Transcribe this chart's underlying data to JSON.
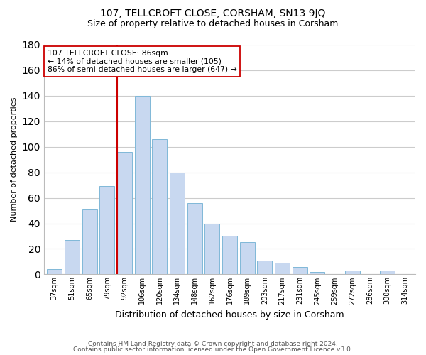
{
  "title": "107, TELLCROFT CLOSE, CORSHAM, SN13 9JQ",
  "subtitle": "Size of property relative to detached houses in Corsham",
  "xlabel": "Distribution of detached houses by size in Corsham",
  "ylabel": "Number of detached properties",
  "categories": [
    "37sqm",
    "51sqm",
    "65sqm",
    "79sqm",
    "92sqm",
    "106sqm",
    "120sqm",
    "134sqm",
    "148sqm",
    "162sqm",
    "176sqm",
    "189sqm",
    "203sqm",
    "217sqm",
    "231sqm",
    "245sqm",
    "259sqm",
    "272sqm",
    "286sqm",
    "300sqm",
    "314sqm"
  ],
  "values": [
    4,
    27,
    51,
    69,
    96,
    140,
    106,
    80,
    56,
    40,
    30,
    25,
    11,
    9,
    6,
    2,
    0,
    3,
    0,
    3,
    0
  ],
  "bar_color": "#c8d8f0",
  "bar_edge_color": "#7fb8d8",
  "vline_color": "#cc0000",
  "annotation_text": "107 TELLCROFT CLOSE: 86sqm\n← 14% of detached houses are smaller (105)\n86% of semi-detached houses are larger (647) →",
  "annotation_box_color": "#ffffff",
  "annotation_box_edge": "#cc0000",
  "ylim": [
    0,
    180
  ],
  "yticks": [
    0,
    20,
    40,
    60,
    80,
    100,
    120,
    140,
    160,
    180
  ],
  "footer_line1": "Contains HM Land Registry data © Crown copyright and database right 2024.",
  "footer_line2": "Contains public sector information licensed under the Open Government Licence v3.0.",
  "background_color": "#ffffff",
  "grid_color": "#cccccc",
  "title_fontsize": 10,
  "subtitle_fontsize": 9
}
